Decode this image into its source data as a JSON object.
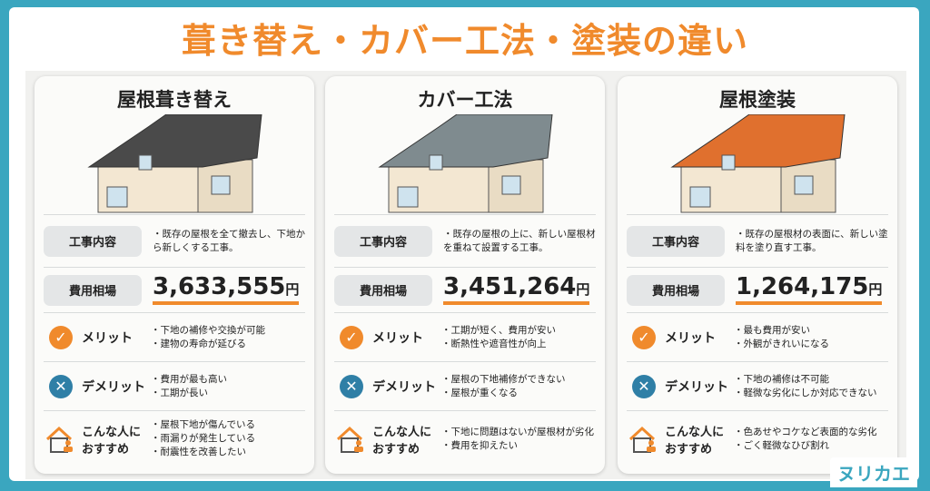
{
  "title": "葺き替え・カバー工法・塗装の違い",
  "logo": "ヌリカエ",
  "labels": {
    "work": "工事内容",
    "cost": "費用相場",
    "merit": "メリット",
    "demerit": "デメリット",
    "recommend": "こんな人に\nおすすめ",
    "yen": "円"
  },
  "colors": {
    "accent": "#f08a2c",
    "teal": "#3aa6bf",
    "demerit": "#2f7fa6"
  },
  "cards": [
    {
      "title": "屋根葺き替え",
      "work": "・既存の屋根を全て撤去し、下地から新しくする工事。",
      "price": "3,633,555",
      "merits": [
        "・下地の補修や交換が可能",
        "・建物の寿命が延びる"
      ],
      "demerits": [
        "・費用が最も高い",
        "・工期が長い"
      ],
      "recommend": [
        "・屋根下地が傷んでいる",
        "・雨漏りが発生している",
        "・耐震性を改善したい"
      ]
    },
    {
      "title": "カバー工法",
      "work": "・既存の屋根の上に、新しい屋根材を重ねて設置する工事。",
      "price": "3,451,264",
      "merits": [
        "・工期が短く、費用が安い",
        "・断熱性や遮音性が向上"
      ],
      "demerits": [
        "・屋根の下地補修ができない",
        "・屋根が重くなる"
      ],
      "recommend": [
        "・下地に問題はないが屋根材が劣化",
        "・費用を抑えたい"
      ]
    },
    {
      "title": "屋根塗装",
      "work": "・既存の屋根材の表面に、新しい塗料を塗り直す工事。",
      "price": "1,264,175",
      "merits": [
        "・最も費用が安い",
        "・外観がきれいになる"
      ],
      "demerits": [
        "・下地の補修は不可能",
        "・軽微な劣化にしか対応できない"
      ],
      "recommend": [
        "・色あせやコケなど表面的な劣化",
        "・ごく軽微なひび割れ"
      ]
    }
  ]
}
